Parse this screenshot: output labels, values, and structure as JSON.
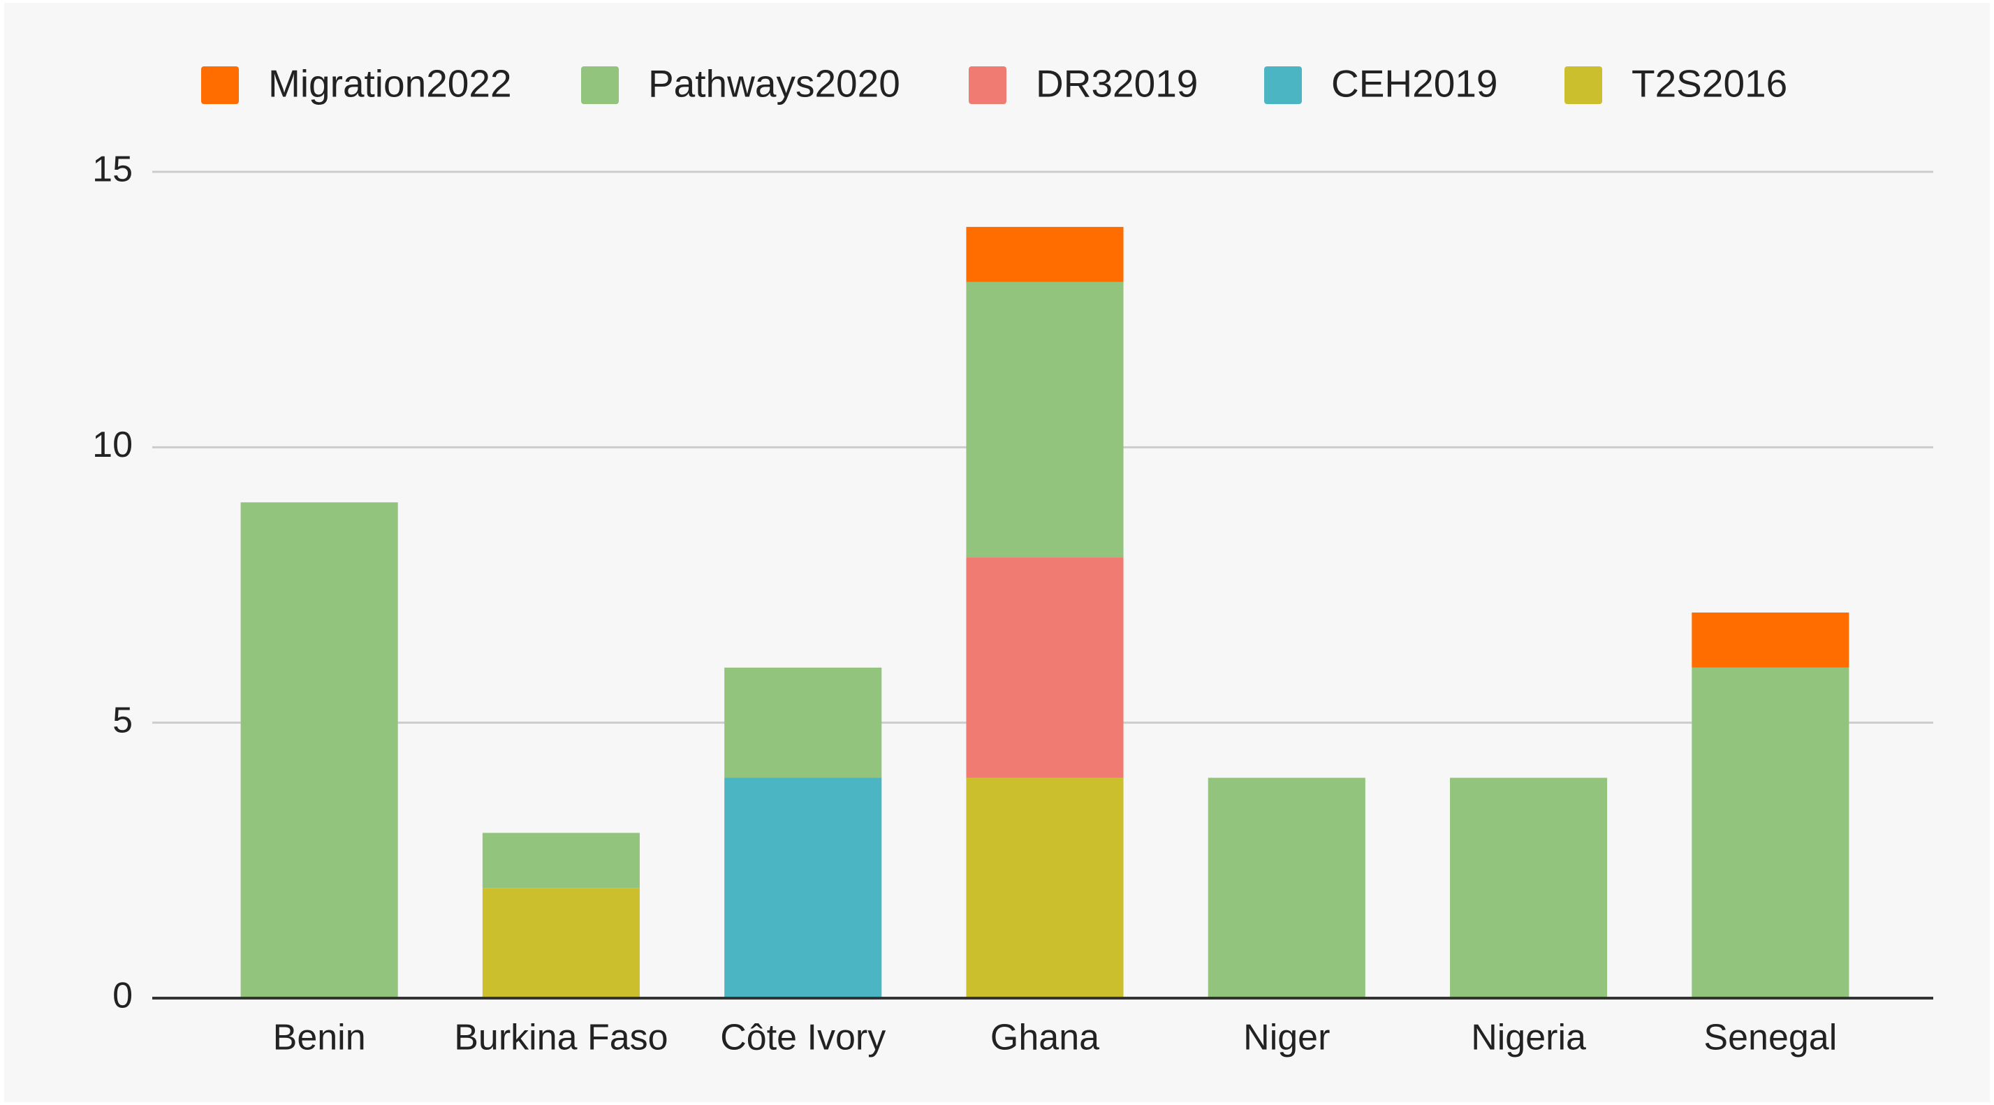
{
  "chart_data": {
    "type": "stacked_bar",
    "categories": [
      "Benin",
      "Burkina Faso",
      "Côte Ivory",
      "Ghana",
      "Niger",
      "Nigeria",
      "Senegal"
    ],
    "series": [
      {
        "name": "Migration2022",
        "color": "#ff6d01",
        "values": [
          0,
          0,
          0,
          1,
          0,
          0,
          1
        ]
      },
      {
        "name": "Pathways2020",
        "color": "#93c47d",
        "values": [
          9,
          1,
          2,
          5,
          4,
          4,
          6
        ]
      },
      {
        "name": "DR32019",
        "color": "#f07b72",
        "values": [
          0,
          0,
          0,
          4,
          0,
          0,
          0
        ]
      },
      {
        "name": "CEH2019",
        "color": "#4bb5c4",
        "values": [
          0,
          0,
          4,
          0,
          0,
          0,
          0
        ]
      },
      {
        "name": "T2S2016",
        "color": "#cbbf2e",
        "values": [
          0,
          2,
          0,
          4,
          0,
          0,
          0
        ]
      }
    ],
    "ylim": [
      0,
      15
    ],
    "yticks": [
      0,
      5,
      10,
      15
    ],
    "grid": true,
    "legend": "top"
  }
}
